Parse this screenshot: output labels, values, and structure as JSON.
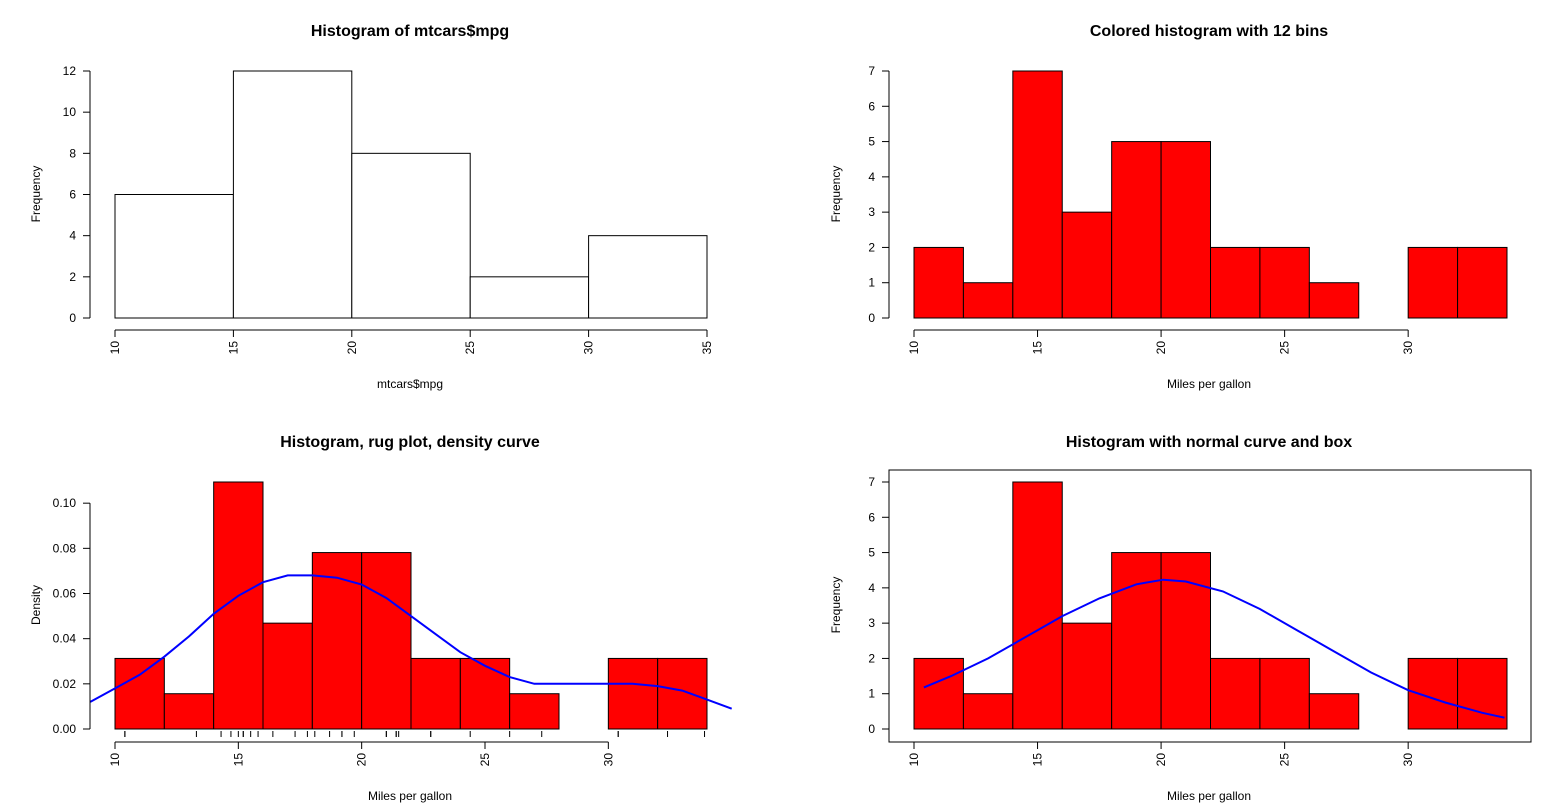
{
  "chart_data": [
    {
      "type": "bar",
      "title": "Histogram of mtcars$mpg",
      "xlabel": "mtcars$mpg",
      "ylabel": "Frequency",
      "bin_edges": [
        10,
        15,
        20,
        25,
        30,
        35
      ],
      "values": [
        6,
        12,
        8,
        2,
        4
      ],
      "bar_color": "#ffffff",
      "xlim": [
        10,
        35
      ],
      "ylim": [
        0,
        12
      ],
      "xticks": [
        10,
        15,
        20,
        25,
        30,
        35
      ],
      "yticks": [
        0,
        2,
        4,
        6,
        8,
        10,
        12
      ],
      "box": false
    },
    {
      "type": "bar",
      "title": "Colored histogram with 12 bins",
      "xlabel": "Miles per gallon",
      "ylabel": "Frequency",
      "bin_edges": [
        10,
        12,
        14,
        16,
        18,
        20,
        22,
        24,
        26,
        28,
        30,
        32,
        34
      ],
      "values": [
        2,
        1,
        7,
        3,
        5,
        5,
        2,
        2,
        1,
        0,
        2,
        2
      ],
      "bar_color": "#ff0000",
      "xlim": [
        10,
        34
      ],
      "ylim": [
        0,
        7
      ],
      "xticks": [
        10,
        15,
        20,
        25,
        30
      ],
      "yticks": [
        0,
        1,
        2,
        3,
        4,
        5,
        6,
        7
      ],
      "box": false
    },
    {
      "type": "bar",
      "title": "Histogram, rug plot, density curve",
      "xlabel": "Miles per gallon",
      "ylabel": "Density",
      "bin_edges": [
        10,
        12,
        14,
        16,
        18,
        20,
        22,
        24,
        26,
        28,
        30,
        32,
        34
      ],
      "values": [
        0.03125,
        0.015625,
        0.109375,
        0.046875,
        0.078125,
        0.078125,
        0.03125,
        0.03125,
        0.015625,
        0,
        0.03125,
        0.03125
      ],
      "bar_color": "#ff0000",
      "xlim": [
        10,
        34
      ],
      "ylim": [
        0,
        0.109375
      ],
      "xticks": [
        10,
        15,
        20,
        25,
        30
      ],
      "yticks": [
        "0.00",
        "0.02",
        "0.04",
        "0.06",
        "0.08",
        "0.10"
      ],
      "rug": [
        10.4,
        10.4,
        13.3,
        14.3,
        14.7,
        15.0,
        15.2,
        15.2,
        15.5,
        15.8,
        16.4,
        17.3,
        17.8,
        18.1,
        18.7,
        19.2,
        19.2,
        19.7,
        21.0,
        21.0,
        21.4,
        21.4,
        21.5,
        22.8,
        22.8,
        24.4,
        26.0,
        27.3,
        30.4,
        30.4,
        32.4,
        33.9
      ],
      "line": {
        "name": "density",
        "color": "#0000ff",
        "x": [
          9.0,
          10,
          11,
          12,
          13,
          14,
          15,
          16,
          17,
          18,
          19,
          20,
          21,
          22,
          23,
          24,
          25,
          26,
          27,
          28,
          29,
          30,
          31,
          32,
          33,
          34,
          35.0
        ],
        "y": [
          0.012,
          0.018,
          0.024,
          0.032,
          0.041,
          0.051,
          0.059,
          0.065,
          0.068,
          0.068,
          0.067,
          0.064,
          0.058,
          0.05,
          0.042,
          0.034,
          0.028,
          0.023,
          0.02,
          0.02,
          0.02,
          0.02,
          0.02,
          0.019,
          0.017,
          0.013,
          0.009
        ]
      },
      "box": false
    },
    {
      "type": "bar",
      "title": "Histogram with normal curve and box",
      "xlabel": "Miles per gallon",
      "ylabel": "Frequency",
      "bin_edges": [
        10,
        12,
        14,
        16,
        18,
        20,
        22,
        24,
        26,
        28,
        30,
        32,
        34
      ],
      "values": [
        2,
        1,
        7,
        3,
        5,
        5,
        2,
        2,
        1,
        0,
        2,
        2
      ],
      "bar_color": "#ff0000",
      "xlim": [
        10,
        34
      ],
      "ylim": [
        0,
        7
      ],
      "xticks": [
        10,
        15,
        20,
        25,
        30
      ],
      "yticks": [
        0,
        1,
        2,
        3,
        4,
        5,
        6,
        7
      ],
      "line": {
        "name": "normal curve",
        "color": "#0000ff",
        "x": [
          10.4,
          11.5,
          13,
          14.5,
          16,
          17.5,
          19,
          20.09,
          21,
          22.5,
          24,
          25.5,
          27,
          28.5,
          30,
          31.5,
          33,
          33.9
        ],
        "y": [
          1.18,
          1.5,
          2.0,
          2.6,
          3.2,
          3.7,
          4.1,
          4.23,
          4.18,
          3.9,
          3.4,
          2.8,
          2.2,
          1.6,
          1.1,
          0.75,
          0.46,
          0.32
        ]
      },
      "box": true
    }
  ]
}
